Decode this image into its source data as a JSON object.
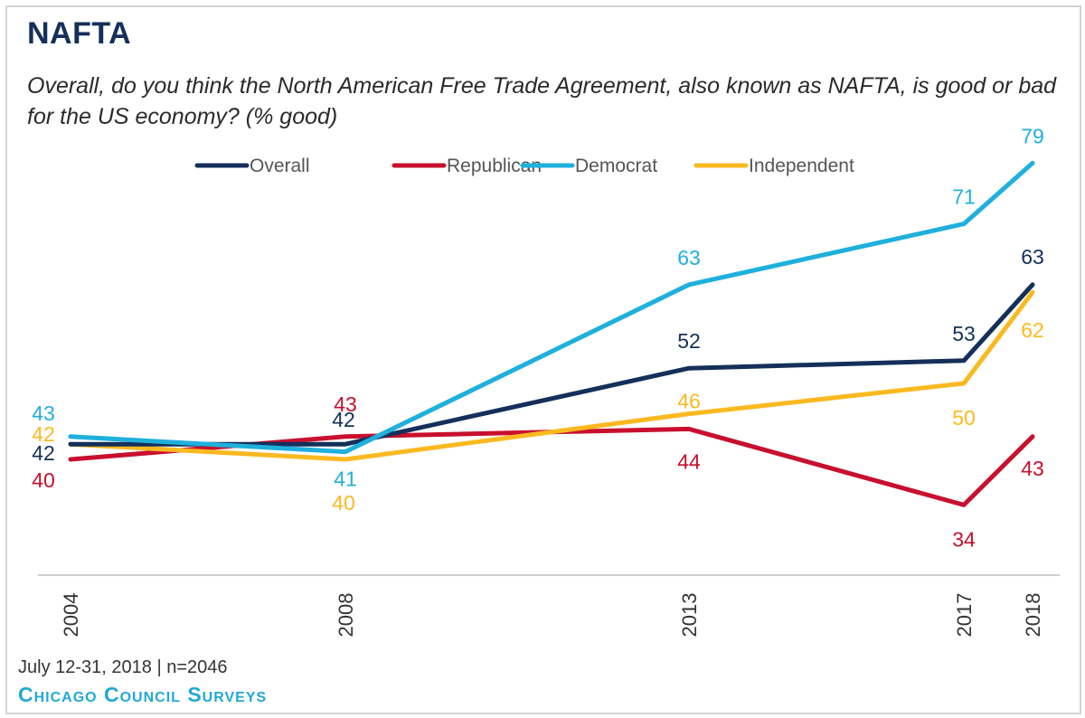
{
  "title": "NAFTA",
  "subtitle": "Overall, do you think the North American Free Trade Agreement, also known as NAFTA, is good or bad for the US economy? (% good)",
  "footer": {
    "date_sample": "July 12-31, 2018 | n=2046",
    "brand": "Chicago Council Surveys"
  },
  "chart_data": {
    "type": "line",
    "x": [
      2004,
      2008,
      2013,
      2017,
      2018
    ],
    "ylim": [
      25,
      85
    ],
    "grid": false,
    "legend_position": "top",
    "series": [
      {
        "name": "Overall",
        "color": "#14305a",
        "values": [
          42,
          42,
          52,
          53,
          63
        ]
      },
      {
        "name": "Republican",
        "color": "#c8102e",
        "values": [
          40,
          43,
          44,
          34,
          43
        ]
      },
      {
        "name": "Democrat",
        "color": "#1fb0dc",
        "values": [
          43,
          41,
          63,
          71,
          79
        ]
      },
      {
        "name": "Independent",
        "color": "#fbb921",
        "values": [
          42,
          40,
          46,
          50,
          62
        ]
      }
    ]
  }
}
